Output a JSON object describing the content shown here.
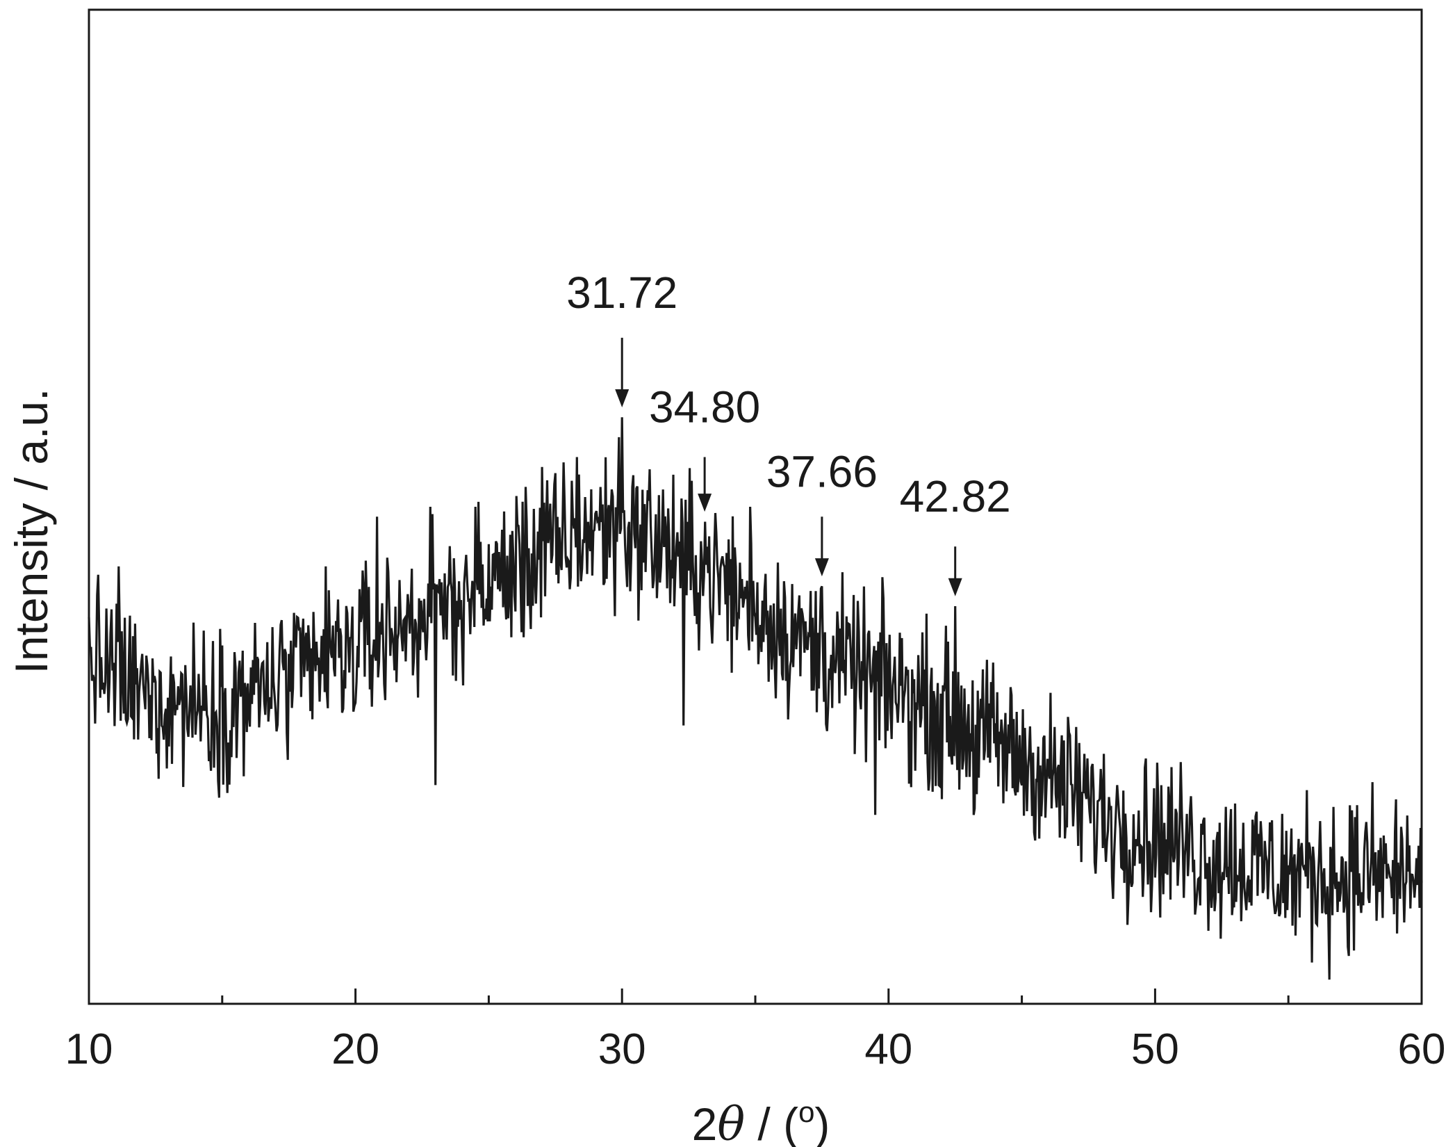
{
  "chart_data": {
    "type": "line",
    "title": "",
    "xlabel": {
      "prefix": "2",
      "symbol": "θ",
      "suffix": " / (",
      "superscript": "o",
      "close": ")"
    },
    "ylabel": "Intensity / a.u.",
    "xlim": [
      10,
      60
    ],
    "ylim": [
      0,
      100
    ],
    "y_ticks_shown": false,
    "x_major_ticks": [
      10,
      20,
      30,
      40,
      50,
      60
    ],
    "x_minor_ticks": [
      15,
      25,
      35,
      45,
      55
    ],
    "x_tick_labels": [
      "10",
      "20",
      "30",
      "40",
      "50",
      "60"
    ],
    "grid": false,
    "legend": "none",
    "series": [
      {
        "color": "#1a1a1a",
        "style": "noisy diffraction pattern",
        "envelope": {
          "x": [
            10,
            12,
            15,
            18,
            21,
            24,
            27,
            29,
            30,
            31,
            33,
            35,
            37.5,
            40,
            43,
            46,
            48,
            50,
            52,
            55,
            58,
            60
          ],
          "y": [
            35,
            31,
            30,
            33,
            37,
            41,
            45,
            48,
            48,
            47,
            44,
            40,
            35,
            32,
            28,
            23,
            19,
            17,
            15,
            13,
            13,
            13
          ]
        },
        "noise_amplitude": 5.5,
        "sample_count": 1300
      }
    ],
    "peaks": [
      {
        "x": 30.0,
        "y": 59,
        "label": "31.72"
      },
      {
        "x": 33.1,
        "y": 48.5,
        "label": "34.80"
      },
      {
        "x": 37.5,
        "y": 42,
        "label": "37.66"
      },
      {
        "x": 42.5,
        "y": 40,
        "label": "42.82"
      }
    ],
    "dips": [
      {
        "x": 23.0,
        "y": 22
      },
      {
        "x": 32.3,
        "y": 28
      },
      {
        "x": 39.5,
        "y": 19
      },
      {
        "x": 41.9,
        "y": 22
      },
      {
        "x": 43.2,
        "y": 19
      }
    ],
    "spikes": [
      {
        "x": 20.8,
        "y": 49
      },
      {
        "x": 22.8,
        "y": 50
      },
      {
        "x": 24.5,
        "y": 50
      },
      {
        "x": 27.0,
        "y": 54
      },
      {
        "x": 28.3,
        "y": 55
      },
      {
        "x": 29.9,
        "y": 57
      },
      {
        "x": 34.8,
        "y": 50
      },
      {
        "x": 26.4,
        "y": 52
      },
      {
        "x": 18.9,
        "y": 44
      },
      {
        "x": 11.1,
        "y": 44
      }
    ],
    "annotations": [
      {
        "label": "31.72",
        "x": 30.0,
        "y_text": 70,
        "y_arrow_start": 67,
        "y_arrow_end": 60
      },
      {
        "label": "34.80",
        "x": 33.1,
        "y_text": 58.5,
        "y_arrow_start": 55,
        "y_arrow_end": 49.5
      },
      {
        "label": "37.66",
        "x": 37.5,
        "y_text": 52,
        "y_arrow_start": 49,
        "y_arrow_end": 43
      },
      {
        "label": "42.82",
        "x": 42.5,
        "y_text": 49.5,
        "y_arrow_start": 46,
        "y_arrow_end": 41
      }
    ]
  }
}
